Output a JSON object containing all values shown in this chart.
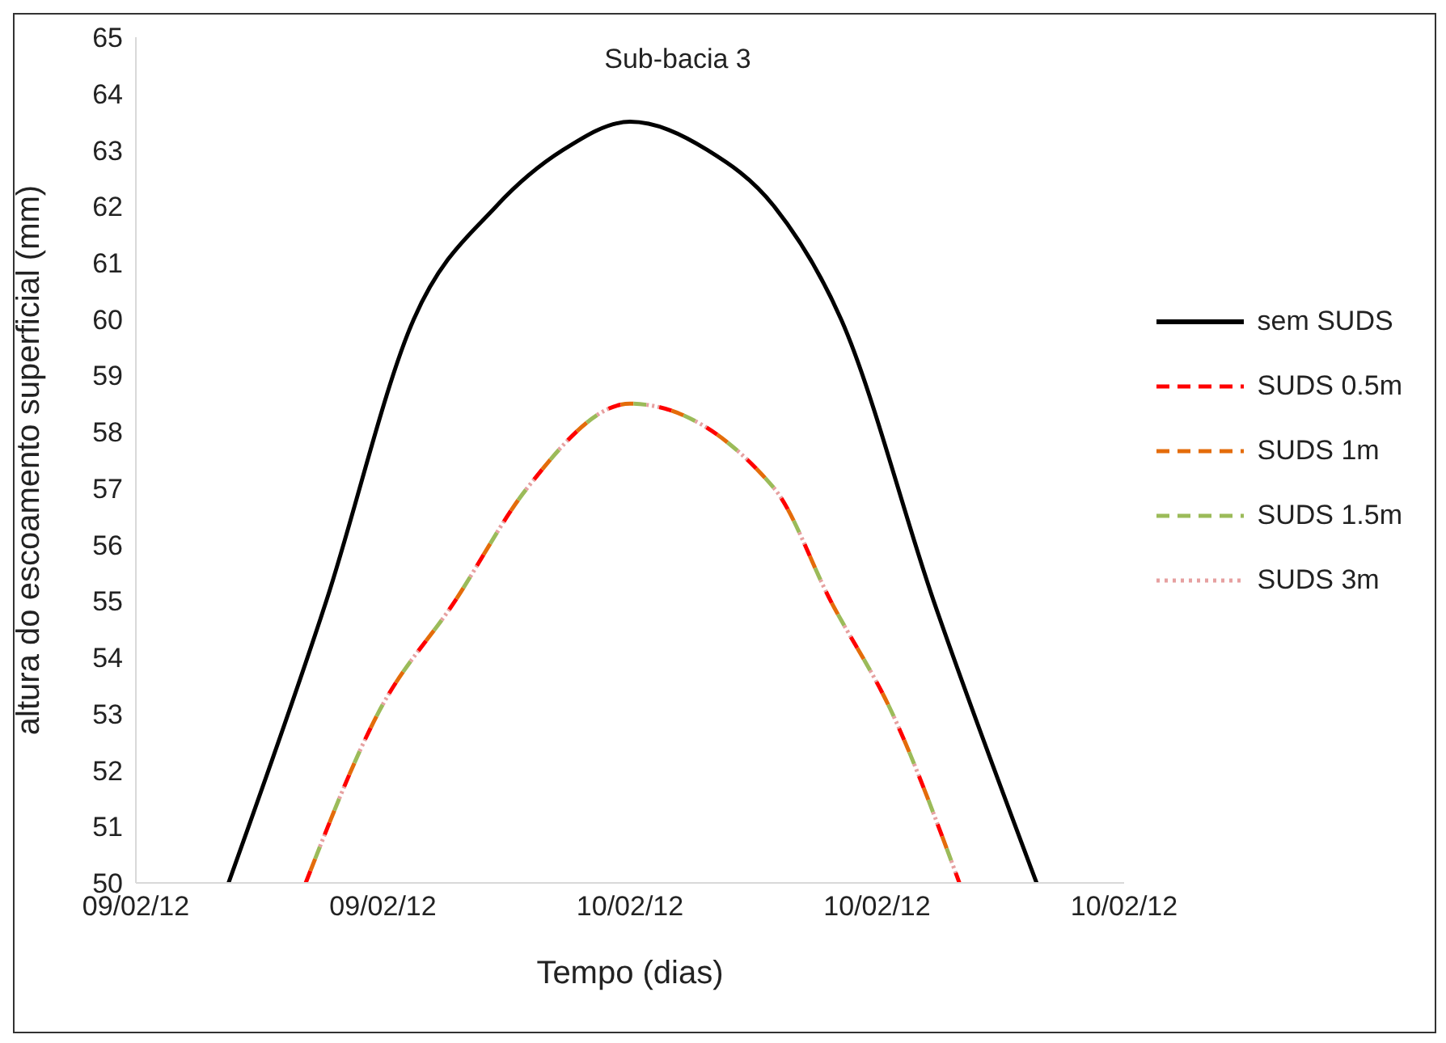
{
  "chart_data": {
    "type": "line",
    "title": "Sub-bacia 3",
    "xlabel": "Tempo (dias)",
    "ylabel": "altura do escoamento superficial (mm)",
    "xlim": [
      "--02-09T08:00",
      "--02-10T16:00"
    ],
    "xticks": [
      {
        "value": "--02-09T08:00",
        "label": "09/02/12"
      },
      {
        "value": "--02-09T16:00",
        "label": "09/02/12"
      },
      {
        "value": "--02-10T00:00",
        "label": "10/02/12"
      },
      {
        "value": "--02-10T08:00",
        "label": "10/02/12"
      },
      {
        "value": "--02-10T16:00",
        "label": "10/02/12"
      }
    ],
    "ylim": [
      50,
      65
    ],
    "yticks": [
      50,
      51,
      52,
      53,
      54,
      55,
      56,
      57,
      58,
      59,
      60,
      61,
      62,
      63,
      64,
      65
    ],
    "grid": false,
    "legend": "right",
    "marker": "none",
    "series": [
      {
        "name": "sem SUDS",
        "color": "#000000",
        "line_style": "solid",
        "x": [
          "--02-09T11:00",
          "--02-09T14:10",
          "--02-09T17:00",
          "--02-09T19:40",
          "--02-09T21:50",
          "--02-10T00:00",
          "--02-10T02:30",
          "--02-10T04:40",
          "--02-10T06:50",
          "--02-10T09:50",
          "--02-10T13:10"
        ],
        "values": [
          50,
          55,
          60,
          62,
          63,
          63.5,
          63,
          62,
          60,
          55,
          50
        ]
      },
      {
        "name": "SUDS 0.5m",
        "color": "#ff0000",
        "line_style": "dashed",
        "x": [
          "--02-09T13:30",
          "--02-09T15:50",
          "--02-09T18:20",
          "--02-09T20:40",
          "--02-10T00:00",
          "--02-10T04:40",
          "--02-10T06:30",
          "--02-10T08:30",
          "--02-10T10:40"
        ],
        "values": [
          50,
          53,
          55,
          57,
          58.5,
          57,
          55,
          53,
          50
        ]
      },
      {
        "name": "SUDS 1m",
        "color": "#e46c0a",
        "line_style": "dashed",
        "x": [
          "--02-09T13:30",
          "--02-09T15:50",
          "--02-09T18:20",
          "--02-09T20:40",
          "--02-10T00:00",
          "--02-10T04:40",
          "--02-10T06:30",
          "--02-10T08:30",
          "--02-10T10:40"
        ],
        "values": [
          50,
          53,
          55,
          57,
          58.5,
          57,
          55,
          53,
          50
        ]
      },
      {
        "name": "SUDS 1.5m",
        "color": "#9bbb59",
        "line_style": "dashed",
        "x": [
          "--02-09T13:30",
          "--02-09T15:50",
          "--02-09T18:20",
          "--02-09T20:40",
          "--02-10T00:00",
          "--02-10T04:40",
          "--02-10T06:30",
          "--02-10T08:30",
          "--02-10T10:40"
        ],
        "values": [
          50,
          53,
          55,
          57,
          58.5,
          57,
          55,
          53,
          50
        ]
      },
      {
        "name": "SUDS 3m",
        "color": "#e6a0a0",
        "line_style": "dotted",
        "x": [
          "--02-09T13:30",
          "--02-09T15:50",
          "--02-09T18:20",
          "--02-09T20:40",
          "--02-10T00:00",
          "--02-10T04:40",
          "--02-10T06:30",
          "--02-10T08:30",
          "--02-10T10:40"
        ],
        "values": [
          50,
          53,
          55,
          57,
          58.5,
          57,
          55,
          53,
          50
        ]
      }
    ]
  }
}
